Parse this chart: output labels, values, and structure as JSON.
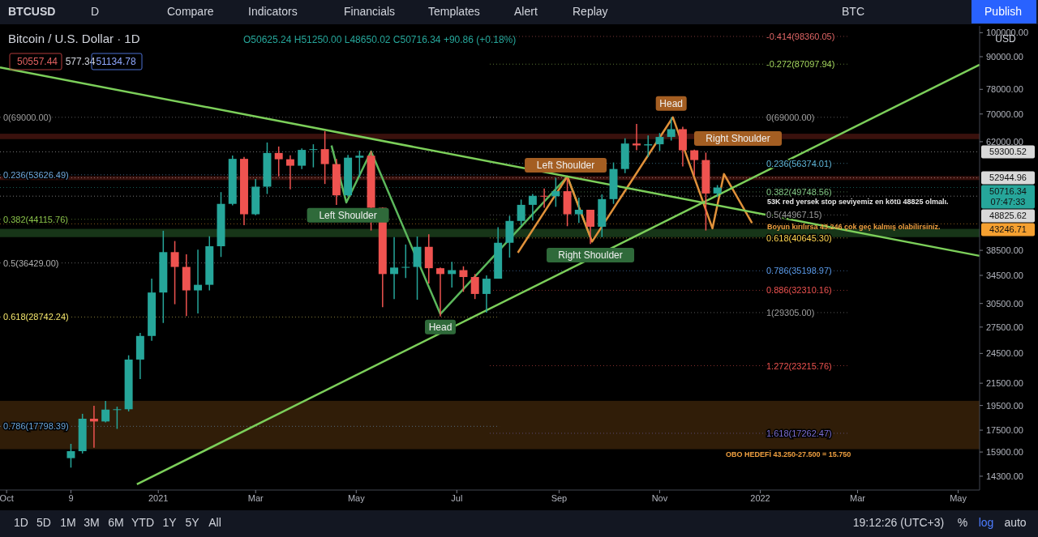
{
  "chart_data": {
    "type": "candlestick",
    "title": "Bitcoin / U.S. Dollar · 1D",
    "subtitle": "O50625.24 H51250.00 L48650.02 C50716.34 +90.86 (+0.18%)",
    "x": [
      "2020-11-09",
      "2020-11-16",
      "2020-11-23",
      "2020-11-30",
      "2020-12-07",
      "2020-12-14",
      "2020-12-21",
      "2020-12-28",
      "2021-01-04",
      "2021-01-11",
      "2021-01-18",
      "2021-01-25",
      "2021-02-01",
      "2021-02-08",
      "2021-02-15",
      "2021-02-22",
      "2021-03-01",
      "2021-03-08",
      "2021-03-15",
      "2021-03-22",
      "2021-03-29",
      "2021-04-05",
      "2021-04-12",
      "2021-04-19",
      "2021-04-26",
      "2021-05-03",
      "2021-05-10",
      "2021-05-17",
      "2021-05-24",
      "2021-05-31",
      "2021-06-07",
      "2021-06-14",
      "2021-06-21",
      "2021-06-28",
      "2021-07-05",
      "2021-07-12",
      "2021-07-19",
      "2021-07-26",
      "2021-08-02",
      "2021-08-09",
      "2021-08-16",
      "2021-08-23",
      "2021-08-30",
      "2021-09-06",
      "2021-09-13",
      "2021-09-20",
      "2021-09-27",
      "2021-10-04",
      "2021-10-11",
      "2021-10-18",
      "2021-10-25",
      "2021-11-01",
      "2021-11-08",
      "2021-11-15",
      "2021-11-22",
      "2021-11-29",
      "2021-12-06"
    ],
    "ohlc": [
      [
        15480,
        16480,
        14850,
        15960
      ],
      [
        15960,
        18800,
        15800,
        18400
      ],
      [
        18400,
        19480,
        16200,
        18180
      ],
      [
        18180,
        19900,
        18100,
        19150
      ],
      [
        19150,
        19400,
        17600,
        19180
      ],
      [
        19180,
        24300,
        19000,
        23850
      ],
      [
        23850,
        26800,
        21900,
        26450
      ],
      [
        26450,
        34000,
        25900,
        32000
      ],
      [
        32000,
        41950,
        28000,
        38200
      ],
      [
        38200,
        40100,
        30400,
        35800
      ],
      [
        35800,
        37850,
        28850,
        32300
      ],
      [
        32300,
        38600,
        29200,
        33100
      ],
      [
        33100,
        40950,
        32300,
        39200
      ],
      [
        39200,
        49700,
        37400,
        47200
      ],
      [
        47200,
        58350,
        46900,
        57500
      ],
      [
        57500,
        58000,
        43000,
        45100
      ],
      [
        45100,
        52650,
        44900,
        50900
      ],
      [
        50900,
        61780,
        49300,
        59000
      ],
      [
        59000,
        60700,
        53250,
        57400
      ],
      [
        57400,
        58400,
        50300,
        55800
      ],
      [
        55800,
        60200,
        55000,
        59800
      ],
      [
        59800,
        61300,
        55400,
        60000
      ],
      [
        60000,
        64900,
        51500,
        56200
      ],
      [
        56200,
        57500,
        47000,
        49000
      ],
      [
        49000,
        58500,
        48800,
        57800
      ],
      [
        57800,
        59600,
        53100,
        58300
      ],
      [
        58300,
        59500,
        42000,
        46400
      ],
      [
        46400,
        46500,
        30000,
        34700
      ],
      [
        34700,
        40800,
        31100,
        35700
      ],
      [
        35700,
        39500,
        34100,
        35800
      ],
      [
        35800,
        40900,
        31000,
        39100
      ],
      [
        39100,
        41300,
        33300,
        35600
      ],
      [
        35600,
        35700,
        28800,
        34700
      ],
      [
        34700,
        36600,
        32700,
        35300
      ],
      [
        35300,
        35900,
        32100,
        34250
      ],
      [
        34250,
        34700,
        31100,
        31800
      ],
      [
        31800,
        34500,
        29300,
        34000
      ],
      [
        34000,
        42600,
        34000,
        39800
      ],
      [
        39800,
        44800,
        37300,
        43800
      ],
      [
        43800,
        48100,
        43000,
        47000
      ],
      [
        47000,
        49300,
        43900,
        48900
      ],
      [
        48900,
        50500,
        46400,
        48800
      ],
      [
        48800,
        52900,
        46600,
        49900
      ],
      [
        49900,
        52900,
        42800,
        45100
      ],
      [
        45100,
        48500,
        43400,
        46000
      ],
      [
        46000,
        46000,
        39600,
        42700
      ],
      [
        42700,
        49200,
        40800,
        48200
      ],
      [
        48200,
        56600,
        47200,
        55000
      ],
      [
        55000,
        62900,
        54000,
        61500
      ],
      [
        61500,
        67000,
        59700,
        61000
      ],
      [
        61000,
        63700,
        58000,
        61300
      ],
      [
        61300,
        64400,
        59500,
        63300
      ],
      [
        63300,
        69000,
        62300,
        65500
      ],
      [
        65500,
        66200,
        55600,
        59700
      ],
      [
        59700,
        59900,
        53500,
        57200
      ],
      [
        57200,
        59100,
        42000,
        49400
      ],
      [
        49400,
        51250,
        48650,
        50716.34
      ]
    ],
    "series": [
      {
        "type": "line",
        "color": "#5cb85c",
        "x": [
          "2021-04-16",
          "2021-04-25",
          "2021-05-10",
          "2021-06-21",
          "2021-09-06",
          "2021-09-21"
        ],
        "values": [
          60960,
          47500,
          59400,
          29130,
          53200,
          40000
        ]
      },
      {
        "type": "line",
        "color": "#e0913a",
        "x": [
          "2021-08-07",
          "2021-09-06",
          "2021-09-21",
          "2021-11-09",
          "2021-12-03",
          "2021-12-10",
          "2021-12-27"
        ],
        "values": [
          38100,
          53200,
          40000,
          69000,
          42400,
          53800,
          43400
        ]
      },
      {
        "type": "line",
        "color": "#7ccf5a",
        "x": [
          "2020-09-27",
          "2022-05-14"
        ],
        "values": [
          85900,
          37580
        ]
      },
      {
        "type": "line",
        "color": "#7ccf5a",
        "x": [
          "2020-12-19",
          "2022-05-14"
        ],
        "values": [
          13800,
          86860
        ]
      }
    ],
    "log": true,
    "xlim": [
      "2020-09-27",
      "2022-05-14"
    ],
    "ylim": [
      13460,
      103000
    ],
    "xticks": [
      {
        "value": "2020-10-01",
        "label": "Oct"
      },
      {
        "value": "2020-11-09",
        "label": "9"
      },
      {
        "value": "2021-01-01",
        "label": "2021"
      },
      {
        "value": "2021-03-01",
        "label": "Mar"
      },
      {
        "value": "2021-05-01",
        "label": "May"
      },
      {
        "value": "2021-07-01",
        "label": "Jul"
      },
      {
        "value": "2021-09-01",
        "label": "Sep"
      },
      {
        "value": "2021-11-01",
        "label": "Nov"
      },
      {
        "value": "2022-01-01",
        "label": "2022"
      },
      {
        "value": "2022-03-01",
        "label": "Mar"
      },
      {
        "value": "2022-05-01",
        "label": "May"
      }
    ],
    "yticks": [
      {
        "value": 100000,
        "label": "100000.00"
      },
      {
        "value": 90000,
        "label": "90000.00"
      },
      {
        "value": 78000,
        "label": "78000.00"
      },
      {
        "value": 70000,
        "label": "70000.00"
      },
      {
        "value": 62000,
        "label": "62000.00"
      },
      {
        "value": 38500,
        "label": "38500.00"
      },
      {
        "value": 34500,
        "label": "34500.00"
      },
      {
        "value": 30500,
        "label": "30500.00"
      },
      {
        "value": 27500,
        "label": "27500.00"
      },
      {
        "value": 24500,
        "label": "24500.00"
      },
      {
        "value": 21500,
        "label": "21500.00"
      },
      {
        "value": 19500,
        "label": "19500.00"
      },
      {
        "value": 17500,
        "label": "17500.00"
      },
      {
        "value": 15900,
        "label": "15900.00"
      },
      {
        "value": 14300,
        "label": "14300.00"
      }
    ],
    "bands": [
      {
        "axis": "y",
        "from": 62700,
        "to": 64200,
        "color": "#c0392b"
      },
      {
        "axis": "y",
        "from": 52400,
        "to": 53300,
        "color": "#c0392b"
      },
      {
        "axis": "y",
        "from": 40800,
        "to": 42300,
        "color": "#4caf50"
      },
      {
        "axis": "y",
        "from": 16100,
        "to": 19900,
        "color": "#a0601a"
      }
    ],
    "ref_lines": [
      {
        "axis": "y",
        "value": 69000,
        "label": "0(69000.00)",
        "color": "#9e9e9e",
        "line_style": "dotted"
      },
      {
        "axis": "y",
        "value": 53626.49,
        "label": "0.236(53626.49)",
        "color": "#6fa8dc",
        "line_style": "dotted"
      },
      {
        "axis": "y",
        "value": 44115.76,
        "label": "0.382(44115.76)",
        "color": "#8bc34a",
        "line_style": "dotted"
      },
      {
        "axis": "y",
        "value": 36429,
        "label": "0.5(36429.00)",
        "color": "#b0b0b0",
        "line_style": "dotted"
      },
      {
        "axis": "y",
        "value": 28742.24,
        "label": "0.618(28742.24)",
        "color": "#f4e66c",
        "line_style": "dotted"
      },
      {
        "axis": "y",
        "value": 17798.39,
        "label": "0.786(17798.39)",
        "color": "#6fa8dc",
        "line_style": "dotted"
      },
      {
        "axis": "y",
        "value": 98360.05,
        "label": "-0.414(98360.05)",
        "color": "#e06666",
        "line_style": "dotted"
      },
      {
        "axis": "y",
        "value": 87097.94,
        "label": "-0.272(87097.94)",
        "color": "#a4d65e",
        "line_style": "dotted"
      },
      {
        "axis": "y",
        "value": 56374.01,
        "label": "0.236(56374.01)",
        "color": "#5fb6d9",
        "line_style": "dotted"
      },
      {
        "axis": "y",
        "value": 49748.56,
        "label": "0.382(49748.56)",
        "color": "#81c784",
        "line_style": "dotted"
      },
      {
        "axis": "y",
        "value": 44967.15,
        "label": "0.5(44967.15)",
        "color": "#9e9e9e",
        "line_style": "dotted"
      },
      {
        "axis": "y",
        "value": 40645.3,
        "label": "0.618(40645.30)",
        "color": "#ffd54f",
        "line_style": "dotted"
      },
      {
        "axis": "y",
        "value": 35198.97,
        "label": "0.786(35198.97)",
        "color": "#5c9ded",
        "line_style": "dotted"
      },
      {
        "axis": "y",
        "value": 32310.16,
        "label": "0.886(32310.16)",
        "color": "#ef5350",
        "line_style": "dotted"
      },
      {
        "axis": "y",
        "value": 29305,
        "label": "1(29305.00)",
        "color": "#9e9e9e",
        "line_style": "dotted"
      },
      {
        "axis": "y",
        "value": 23215.76,
        "label": "1.272(23215.76)",
        "color": "#ef5350",
        "line_style": "dotted"
      },
      {
        "axis": "y",
        "value": 17262.47,
        "label": "1.618(17262.47)",
        "color": "#7e6fd0",
        "line_style": "dotted"
      },
      {
        "axis": "y",
        "value": 59300.52,
        "label": "59300.52",
        "color": "#d9d9d9",
        "line_style": "dotted"
      },
      {
        "axis": "y",
        "value": 52944.96,
        "label": "52944.96",
        "color": "#d9d9d9",
        "line_style": "dotted"
      },
      {
        "axis": "y",
        "value": 50716.34,
        "label": "50716.34",
        "color": "#26a69a",
        "line_style": "dotted"
      },
      {
        "axis": "y",
        "value": 48825.62,
        "label": "48825.62",
        "color": "#d9d9d9",
        "line_style": "dotted"
      },
      {
        "axis": "y",
        "value": 43246.71,
        "label": "43246.71",
        "color": "#f5a030",
        "line_style": "dotted"
      }
    ],
    "annotations": [
      {
        "text": "Left Shoulder",
        "x": "2021-04-26",
        "y": 44900
      },
      {
        "text": "Head",
        "x": "2021-06-21",
        "y": 27500
      },
      {
        "text": "Right Shoulder",
        "x": "2021-09-20",
        "y": 37700
      },
      {
        "text": "Left Shoulder",
        "x": "2021-09-05",
        "y": 55900
      },
      {
        "text": "Head",
        "x": "2021-11-08",
        "y": 73300
      },
      "BTCUSD",
      "D",
      "Compare",
      "Indicators",
      "Financials",
      "Templates",
      "Alert",
      "Replay",
      "BTC",
      "Publish",
      "50557.44",
      "577.34",
      "51134.78",
      "USD",
      "1D",
      "5D",
      "1M",
      "3M",
      "6M",
      "YTD",
      "1Y",
      "5Y",
      "All",
      "19:12:26 (UTC+3)",
      "%",
      "log",
      "auto",
      "07:47:33",
      "53K red yersek stop seviyemiz en kötü 48825 olmalı.",
      "Boyun kırılırsa 43.246 çok geç kalmış olabilirsiniz.",
      "OBO HEDEFİ 43.250-27.500 = 15.750",
      "Right Shoulder",
      "0(69000.00)"
    ]
  }
}
